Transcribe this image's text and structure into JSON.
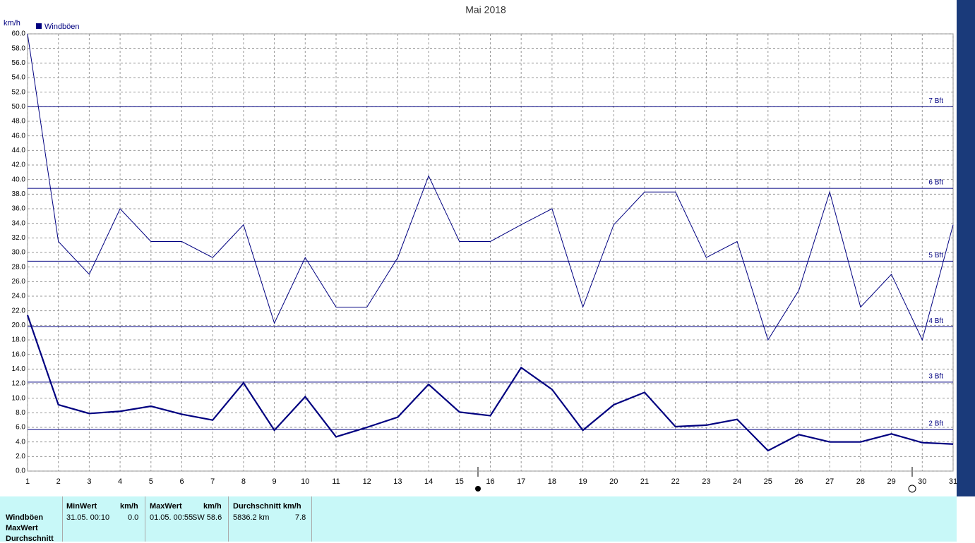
{
  "chart_data": {
    "type": "line",
    "title": "Mai 2018",
    "y_label": "km/h",
    "categories": [
      "1",
      "2",
      "3",
      "4",
      "5",
      "6",
      "7",
      "8",
      "9",
      "10",
      "11",
      "12",
      "13",
      "14",
      "15",
      "16",
      "17",
      "18",
      "19",
      "20",
      "21",
      "22",
      "23",
      "24",
      "25",
      "26",
      "27",
      "28",
      "29",
      "30",
      "31"
    ],
    "series": [
      {
        "name": "Windböen",
        "color": "#000080",
        "width": 1,
        "values": [
          60,
          31.5,
          27,
          36,
          31.5,
          31.5,
          29.3,
          33.8,
          20.3,
          29.3,
          22.5,
          22.5,
          29.3,
          40.5,
          31.5,
          31.5,
          33.8,
          36,
          22.5,
          33.8,
          38.3,
          38.3,
          29.3,
          31.5,
          18,
          24.8,
          38.3,
          22.5,
          27,
          18,
          33.8
        ]
      },
      {
        "color": "#000080",
        "width": 2.2,
        "values": [
          21.4,
          9.1,
          7.9,
          8.2,
          8.9,
          7.8,
          7.0,
          12.1,
          5.6,
          10.2,
          4.7,
          6.0,
          7.4,
          11.9,
          8.1,
          7.6,
          14.2,
          11.2,
          5.6,
          9.1,
          10.8,
          6.1,
          6.3,
          7.1,
          2.8,
          5.0,
          4.0,
          4.0,
          5.1,
          3.9,
          3.7
        ]
      }
    ],
    "ylim": [
      0,
      60
    ],
    "yticks": [
      {
        "value": 0,
        "label": "0.0"
      },
      {
        "value": 2,
        "label": "2.0"
      },
      {
        "value": 4,
        "label": "4.0"
      },
      {
        "value": 6,
        "label": "6.0"
      },
      {
        "value": 8,
        "label": "8.0"
      },
      {
        "value": 10,
        "label": "10.0"
      },
      {
        "value": 12,
        "label": "12.0"
      },
      {
        "value": 14,
        "label": "14.0"
      },
      {
        "value": 16,
        "label": "16.0"
      },
      {
        "value": 18,
        "label": "18.0"
      },
      {
        "value": 20,
        "label": "20.0"
      },
      {
        "value": 22,
        "label": "22.0"
      },
      {
        "value": 24,
        "label": "24.0"
      },
      {
        "value": 26,
        "label": "26.0"
      },
      {
        "value": 28,
        "label": "28.0"
      },
      {
        "value": 30,
        "label": "30.0"
      },
      {
        "value": 32,
        "label": "32.0"
      },
      {
        "value": 34,
        "label": "34.0"
      },
      {
        "value": 36,
        "label": "36.0"
      },
      {
        "value": 38,
        "label": "38.0"
      },
      {
        "value": 40,
        "label": "40.0"
      },
      {
        "value": 42,
        "label": "42.0"
      },
      {
        "value": 44,
        "label": "44.0"
      },
      {
        "value": 46,
        "label": "46.0"
      },
      {
        "value": 48,
        "label": "48.0"
      },
      {
        "value": 50,
        "label": "50.0"
      },
      {
        "value": 52,
        "label": "52.0"
      },
      {
        "value": 54,
        "label": "54.0"
      },
      {
        "value": 56,
        "label": "56.0"
      },
      {
        "value": 58,
        "label": "58.0"
      },
      {
        "value": 60,
        "label": "60.0"
      }
    ],
    "reference_lines": [
      {
        "value": 50,
        "label": "7 Bft"
      },
      {
        "value": 38.8,
        "label": "6 Bft"
      },
      {
        "value": 28.8,
        "label": "5 Bft"
      },
      {
        "value": 19.8,
        "label": "4 Bft"
      },
      {
        "value": 12.2,
        "label": "3 Bft"
      },
      {
        "value": 5.7,
        "label": "2 Bft"
      }
    ],
    "grid": true
  },
  "stats": {
    "row_labels": [
      "Windböen",
      "MaxWert",
      "Durchschnitt"
    ],
    "columns": [
      {
        "header": "MinWert",
        "unit": "km/h",
        "time": "31.05.  00:10",
        "value": "0.0"
      },
      {
        "header": "MaxWert",
        "unit": "km/h",
        "time": "01.05.  00:55",
        "value": "SW 58.6"
      },
      {
        "header": "Durchschnitt km/h",
        "time": "5836.2 km",
        "value": "7.8"
      }
    ]
  }
}
